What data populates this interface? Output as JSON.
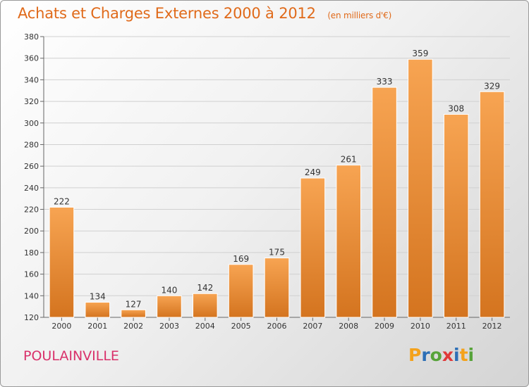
{
  "header": {
    "title": "Achats et Charges Externes 2000 à 2012",
    "subtitle": "(en milliers d'€)"
  },
  "footer": {
    "commune": "POULAINVILLE",
    "logo_text": "Proxiti"
  },
  "colors": {
    "bar_top": "#f7a452",
    "bar_bottom": "#d4741f",
    "accent": "#e06a1a",
    "commune": "#d9306a",
    "logo_letters": [
      "#f4a21b",
      "#2d6fb6",
      "#57a33a",
      "#e03a3a",
      "#2d6fb6",
      "#f4a21b",
      "#57a33a"
    ]
  },
  "chart_data": {
    "type": "bar",
    "title": "Achats et Charges Externes 2000 à 2012",
    "subtitle": "(en milliers d'€)",
    "categories": [
      "2000",
      "2001",
      "2002",
      "2003",
      "2004",
      "2005",
      "2006",
      "2007",
      "2008",
      "2009",
      "2010",
      "2011",
      "2012"
    ],
    "values": [
      222,
      134,
      127,
      140,
      142,
      169,
      175,
      249,
      261,
      333,
      359,
      308,
      329
    ],
    "ylim": [
      120,
      380
    ],
    "yticks": [
      120,
      140,
      160,
      180,
      200,
      220,
      240,
      260,
      280,
      300,
      320,
      340,
      360,
      380
    ],
    "grid": true,
    "legend": "none"
  }
}
